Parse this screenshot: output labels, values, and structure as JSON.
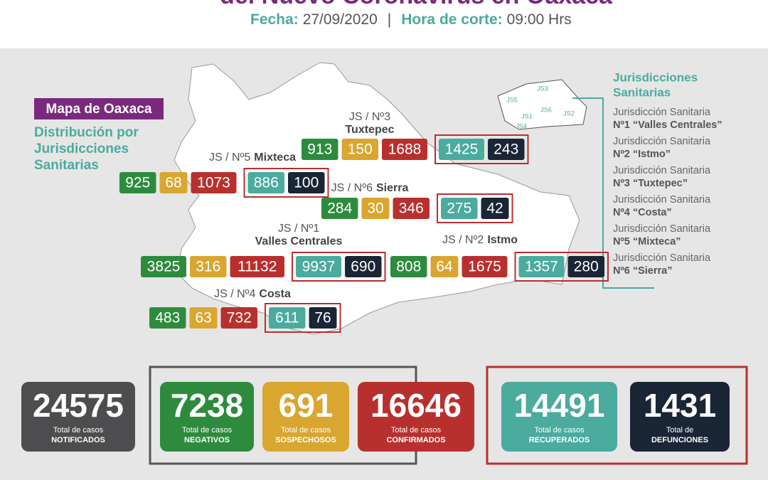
{
  "header": {
    "title": "del Nuevo Coronavirus en Oaxaca",
    "fecha_label": "Fecha:",
    "fecha": "27/09/2020",
    "hora_label": "Hora de corte:",
    "hora": "09:00 Hrs"
  },
  "map_tag": "Mapa de Oaxaca",
  "subtitle": [
    "Distribución por",
    "Jurisdicciones",
    "Sanitarias"
  ],
  "jurisdictions": [
    {
      "label": "JS / Nº3",
      "name": "Tuxtepec",
      "values": [
        913,
        150,
        1688,
        1425,
        243
      ]
    },
    {
      "label": "JS / Nº5",
      "name": "Mixteca",
      "values": [
        925,
        68,
        1073,
        886,
        100
      ]
    },
    {
      "label": "JS / Nº6",
      "name": "Sierra",
      "values": [
        284,
        30,
        346,
        275,
        42
      ]
    },
    {
      "label": "JS / Nº1",
      "name": "Valles Centrales",
      "values": [
        3825,
        316,
        11132,
        9937,
        690
      ]
    },
    {
      "label": "JS / Nº2",
      "name": "Istmo",
      "values": [
        808,
        64,
        1675,
        1357,
        280
      ]
    },
    {
      "label": "JS / Nº4",
      "name": "Costa",
      "values": [
        483,
        63,
        732,
        611,
        76
      ]
    }
  ],
  "legend": {
    "title": [
      "Jurisdicciones",
      "Sanitarias"
    ],
    "items": [
      {
        "line1": "Jurisdicción Sanitaria",
        "line2": "Nº1 “Valles Centrales”"
      },
      {
        "line1": "Jurisdicción Sanitaria",
        "line2": "Nº2 “Istmo”"
      },
      {
        "line1": "Jurisdicción Sanitaria",
        "line2": "Nº3 “Tuxtepec”"
      },
      {
        "line1": "Jurisdicción Sanitaria",
        "line2": "Nº4 “Costa”"
      },
      {
        "line1": "Jurisdicción Sanitaria",
        "line2": "Nº5 “Mixteca”"
      },
      {
        "line1": "Jurisdicción Sanitaria",
        "line2": "Nº6 “Sierra”"
      }
    ]
  },
  "inset_labels": [
    "JS1",
    "JS2",
    "JS3",
    "JS4",
    "JS5",
    "JS6"
  ],
  "totals": [
    {
      "value": 24575,
      "caption": "Total de casos",
      "label": "NOTIFICADOS"
    },
    {
      "value": 7238,
      "caption": "Total de casos",
      "label": "NEGATIVOS"
    },
    {
      "value": 691,
      "caption": "Total de casos",
      "label": "SOSPECHOSOS"
    },
    {
      "value": 16646,
      "caption": "Total de casos",
      "label": "CONFIRMADOS"
    },
    {
      "value": 14491,
      "caption": "Total de casos",
      "label": "RECUPERADOS"
    },
    {
      "value": 1431,
      "caption": "Total de",
      "label": "DEFUNCIONES"
    }
  ]
}
